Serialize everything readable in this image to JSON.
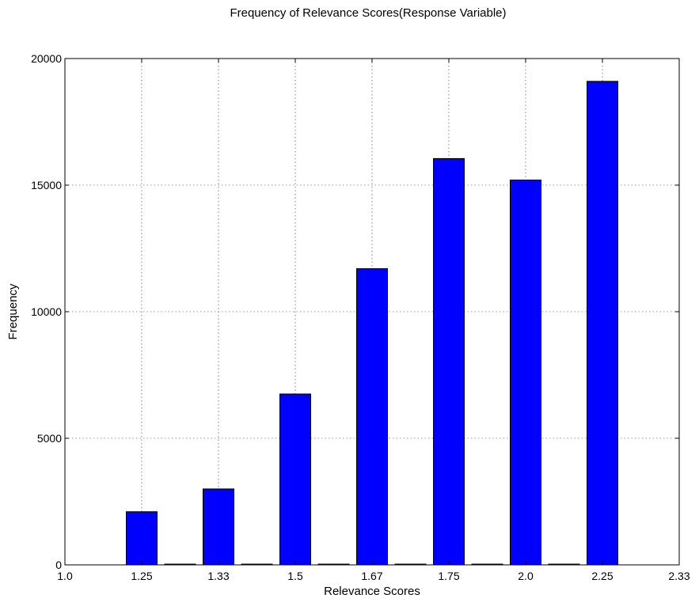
{
  "chart_data": {
    "type": "bar",
    "title": "Frequency of Relevance Scores(Response Variable)",
    "xlabel": "Relevance Scores",
    "ylabel": "Frequency",
    "ylim": [
      0,
      20000
    ],
    "y_ticks": [
      0,
      5000,
      10000,
      15000,
      20000
    ],
    "x_ticks": [
      "1.0",
      "1.25",
      "1.33",
      "1.5",
      "1.67",
      "1.75",
      "2.0",
      "2.25",
      "2.33"
    ],
    "categories": [
      "1.25",
      "1.33",
      "1.5",
      "1.67",
      "1.75",
      "2.0",
      "2.25"
    ],
    "values": [
      2100,
      3000,
      6750,
      11700,
      16050,
      15200,
      19100
    ],
    "gap_values": [
      30,
      30,
      30,
      30,
      30,
      30
    ],
    "grid": true,
    "colors": {
      "bar_fill": "#0000ff",
      "bar_edge": "#000000"
    }
  }
}
